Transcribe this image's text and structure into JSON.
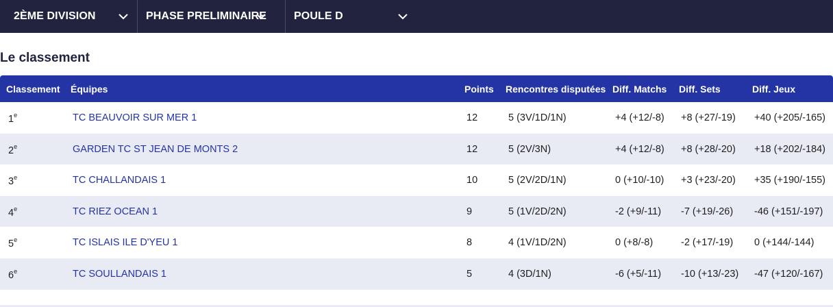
{
  "filters": {
    "division": {
      "label": "2ÈME DIVISION",
      "icon": "chevron-down-icon"
    },
    "phase": {
      "label": "PHASE PRELIMINAIRE",
      "icon": "chevron-down-icon"
    },
    "poule": {
      "label": "POULE D",
      "icon": "chevron-down-icon"
    }
  },
  "section_title": "Le classement",
  "table": {
    "headers": {
      "rank": "Classement",
      "team": "Équipes",
      "points": "Points",
      "played": "Rencontres disputées",
      "diff_matchs": "Diff. Matchs",
      "diff_sets": "Diff. Sets",
      "diff_jeux": "Diff. Jeux"
    },
    "rank_suffix": "e",
    "rows": [
      {
        "rank": "1",
        "team": "TC BEAUVOIR SUR MER 1",
        "points": "12",
        "played": "5 (3V/1D/1N)",
        "diff_matchs": "+4 (+12/-8)",
        "diff_sets": "+8 (+27/-19)",
        "diff_jeux": "+40 (+205/-165)"
      },
      {
        "rank": "2",
        "team": "GARDEN TC ST JEAN DE MONTS 2",
        "points": "12",
        "played": "5 (2V/3N)",
        "diff_matchs": "+4 (+12/-8)",
        "diff_sets": "+8 (+28/-20)",
        "diff_jeux": "+18 (+202/-184)"
      },
      {
        "rank": "3",
        "team": "TC CHALLANDAIS 1",
        "points": "10",
        "played": "5 (2V/2D/1N)",
        "diff_matchs": "0 (+10/-10)",
        "diff_sets": "+3 (+23/-20)",
        "diff_jeux": "+35 (+190/-155)"
      },
      {
        "rank": "4",
        "team": "TC RIEZ OCEAN 1",
        "points": "9",
        "played": "5 (1V/2D/2N)",
        "diff_matchs": "-2 (+9/-11)",
        "diff_sets": "-7 (+19/-26)",
        "diff_jeux": "-46 (+151/-197)"
      },
      {
        "rank": "5",
        "team": "TC ISLAIS ILE D'YEU 1",
        "points": "8",
        "played": "4 (1V/1D/2N)",
        "diff_matchs": "0 (+8/-8)",
        "diff_sets": "-2 (+17/-19)",
        "diff_jeux": "0 (+144/-144)"
      },
      {
        "rank": "6",
        "team": "TC SOULLANDAIS 1",
        "points": "5",
        "played": "4 (3D/1N)",
        "diff_matchs": "-6 (+5/-11)",
        "diff_sets": "-10 (+13/-23)",
        "diff_jeux": "-47 (+120/-167)"
      }
    ]
  }
}
